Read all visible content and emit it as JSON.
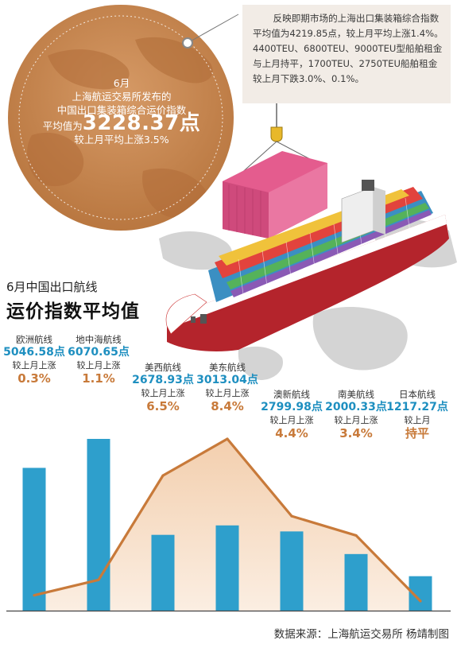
{
  "header": {
    "circle_lines": [
      "6月",
      "上海航运交易所发布的",
      "中国出口集装箱综合运价指数"
    ],
    "circle_prefix": "平均值为",
    "circle_big": "3228.37点",
    "circle_change": "较上月平均上涨3.5%",
    "note": "反映即期市场的上海出口集装箱综合指数平均值为4219.85点，较上月平均上涨1.4%。4400TEU、6800TEU、9000TEU型船舶租金与上月持平，1700TEU、2750TEU船舶租金较上月下跌3.0%、0.1%。"
  },
  "title": {
    "line1": "6月中国出口航线",
    "line2": "运价指数平均值"
  },
  "chart_data": {
    "type": "bar",
    "categories": [
      "欧洲航线",
      "地中海航线",
      "美西航线",
      "美东航线",
      "澳新航线",
      "南美航线",
      "日本航线"
    ],
    "values": [
      5046.58,
      6070.65,
      2678.93,
      3013.04,
      2799.98,
      2000.33,
      1217.27
    ],
    "value_labels": [
      "5046.58点",
      "6070.65点",
      "2678.93点",
      "3013.04点",
      "2799.98点",
      "2000.33点",
      "1217.27点"
    ],
    "compare_labels": [
      "较上月上涨",
      "较上月上涨",
      "较上月上涨",
      "较上月上涨",
      "较上月上涨",
      "较上月上涨",
      "较上月"
    ],
    "change_labels": [
      "0.3%",
      "1.1%",
      "6.5%",
      "8.4%",
      "4.4%",
      "3.4%",
      "持平"
    ],
    "change_values": [
      0.3,
      1.1,
      6.5,
      8.4,
      4.4,
      3.4,
      0
    ],
    "bar_color": "#2e9fcc",
    "line_color": "#c87a3a",
    "area_color": "#f6dcc3"
  },
  "source": "数据来源：上海航运交易所  杨靖制图",
  "colors": {
    "circle": "#c98a55",
    "note_box": "#f2ece6",
    "accent_value": "#1e8fc0",
    "accent_change": "#c87a3a",
    "ship_hull": "#b4242c"
  }
}
